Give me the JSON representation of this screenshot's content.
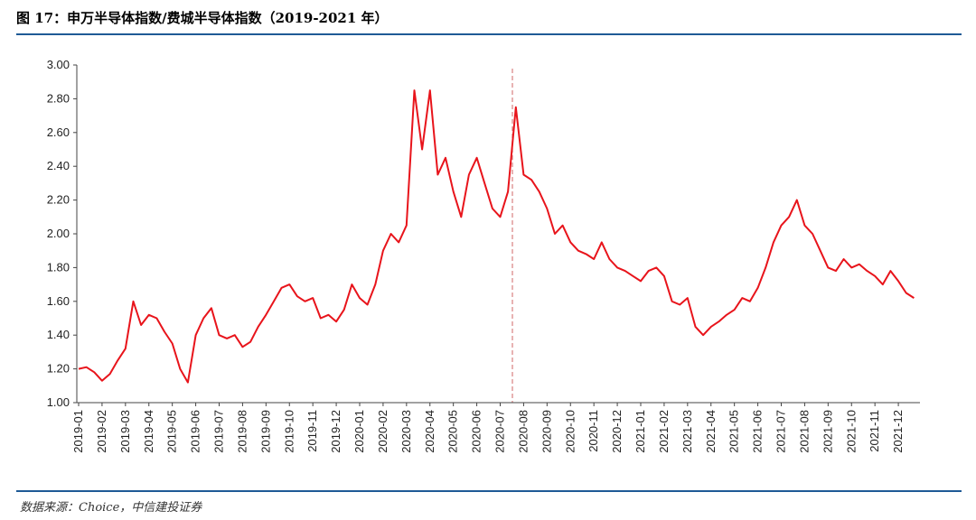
{
  "chart_data": {
    "type": "line",
    "title": "图 17：申万半导体指数/费城半导体指数（2019-2021 年）",
    "source": "数据来源：Choice，中信建投证券",
    "categories": [
      "2019-01",
      null,
      null,
      "2019-02",
      null,
      null,
      "2019-03",
      null,
      null,
      "2019-04",
      null,
      null,
      "2019-05",
      null,
      null,
      "2019-06",
      null,
      null,
      "2019-07",
      null,
      null,
      "2019-08",
      null,
      null,
      "2019-09",
      null,
      null,
      "2019-10",
      null,
      null,
      "2019-11",
      null,
      null,
      "2019-12",
      null,
      null,
      "2020-01",
      null,
      null,
      "2020-02",
      null,
      null,
      "2020-03",
      null,
      null,
      "2020-04",
      null,
      null,
      "2020-05",
      null,
      null,
      "2020-06",
      null,
      null,
      "2020-07",
      null,
      null,
      "2020-08",
      null,
      null,
      "2020-09",
      null,
      null,
      "2020-10",
      null,
      null,
      "2020-11",
      null,
      null,
      "2020-12",
      null,
      null,
      "2021-01",
      null,
      null,
      "2021-02",
      null,
      null,
      "2021-03",
      null,
      null,
      "2021-04",
      null,
      null,
      "2021-05",
      null,
      null,
      "2021-06",
      null,
      null,
      "2021-07",
      null,
      null,
      "2021-08",
      null,
      null,
      "2021-09",
      null,
      null,
      "2021-10",
      null,
      null,
      "2021-11",
      null,
      null,
      "2021-12",
      null,
      null
    ],
    "series": [
      {
        "name": "申万半导体指数/费城半导体指数",
        "color": "#e8141b",
        "values": [
          1.2,
          1.21,
          1.18,
          1.13,
          1.17,
          1.25,
          1.32,
          1.6,
          1.46,
          1.52,
          1.5,
          1.42,
          1.35,
          1.2,
          1.12,
          1.4,
          1.5,
          1.56,
          1.4,
          1.38,
          1.4,
          1.33,
          1.36,
          1.45,
          1.52,
          1.6,
          1.68,
          1.7,
          1.63,
          1.6,
          1.62,
          1.5,
          1.52,
          1.48,
          1.55,
          1.7,
          1.62,
          1.58,
          1.7,
          1.9,
          2.0,
          1.95,
          2.05,
          2.85,
          2.5,
          2.85,
          2.35,
          2.45,
          2.25,
          2.1,
          2.35,
          2.45,
          2.3,
          2.15,
          2.1,
          2.25,
          2.75,
          2.35,
          2.32,
          2.25,
          2.15,
          2.0,
          2.05,
          1.95,
          1.9,
          1.88,
          1.85,
          1.95,
          1.85,
          1.8,
          1.78,
          1.75,
          1.72,
          1.78,
          1.8,
          1.75,
          1.6,
          1.58,
          1.62,
          1.45,
          1.4,
          1.45,
          1.48,
          1.52,
          1.55,
          1.62,
          1.6,
          1.68,
          1.8,
          1.95,
          2.05,
          2.1,
          2.2,
          2.05,
          2.0,
          1.9,
          1.8,
          1.78,
          1.85,
          1.8,
          1.82,
          1.78,
          1.75,
          1.7,
          1.78,
          1.72,
          1.65,
          1.62
        ]
      }
    ],
    "ylim": [
      1,
      3
    ],
    "yticks": [
      {
        "value": 1,
        "label": "1.00"
      },
      {
        "value": 1.2,
        "label": "1.20"
      },
      {
        "value": 1.4,
        "label": "1.40"
      },
      {
        "value": 1.6,
        "label": "1.60"
      },
      {
        "value": 1.8,
        "label": "1.80"
      },
      {
        "value": 2,
        "label": "2.00"
      },
      {
        "value": 2.2,
        "label": "2.20"
      },
      {
        "value": 2.4,
        "label": "2.40"
      },
      {
        "value": 2.6,
        "label": "2.60"
      },
      {
        "value": 2.8,
        "label": "2.80"
      },
      {
        "value": 3,
        "label": "3.00"
      }
    ],
    "grid": false
  }
}
